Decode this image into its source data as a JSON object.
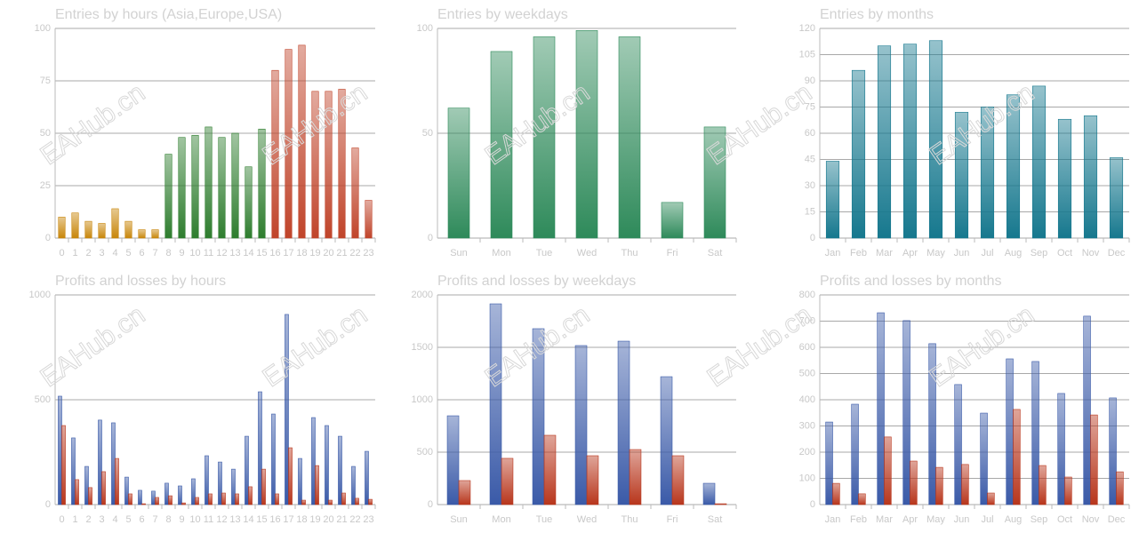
{
  "watermark": "EAHub.cn",
  "chart_data": [
    {
      "type": "bar",
      "title": "Entries by hours (Asia,Europe,USA)",
      "categories": [
        "0",
        "1",
        "2",
        "3",
        "4",
        "5",
        "6",
        "7",
        "8",
        "9",
        "10",
        "11",
        "12",
        "13",
        "14",
        "15",
        "16",
        "17",
        "18",
        "19",
        "20",
        "21",
        "22",
        "23"
      ],
      "values": [
        10,
        12,
        8,
        7,
        14,
        8,
        4,
        4,
        40,
        48,
        49,
        53,
        48,
        50,
        34,
        52,
        80,
        90,
        92,
        70,
        70,
        71,
        43,
        18
      ],
      "colors": [
        "#c8860a",
        "#c8860a",
        "#c8860a",
        "#c8860a",
        "#c8860a",
        "#c8860a",
        "#c8860a",
        "#c8860a",
        "#2e7d2e",
        "#2e7d2e",
        "#2e7d2e",
        "#2e7d2e",
        "#2e7d2e",
        "#2e7d2e",
        "#2e7d2e",
        "#2e7d2e",
        "#c0442a",
        "#c0442a",
        "#c0442a",
        "#c0442a",
        "#c0442a",
        "#c0442a",
        "#c0442a",
        "#c0442a"
      ],
      "ylim": [
        0,
        100
      ],
      "yticks": [
        0,
        25,
        50,
        75,
        100
      ],
      "grid": true
    },
    {
      "type": "bar",
      "title": "Entries by weekdays",
      "categories": [
        "Sun",
        "Mon",
        "Tue",
        "Wed",
        "Thu",
        "Fri",
        "Sat"
      ],
      "values": [
        62,
        89,
        96,
        99,
        96,
        17,
        53
      ],
      "color": "#2e8a5a",
      "ylim": [
        0,
        100
      ],
      "yticks": [
        0,
        50,
        100
      ],
      "grid": true
    },
    {
      "type": "bar",
      "title": "Entries by months",
      "categories": [
        "Jan",
        "Feb",
        "Mar",
        "Apr",
        "May",
        "Jun",
        "Jul",
        "Aug",
        "Sep",
        "Oct",
        "Nov",
        "Dec"
      ],
      "values": [
        44,
        96,
        110,
        111,
        113,
        72,
        75,
        82,
        87,
        68,
        70,
        46
      ],
      "color": "#16788e",
      "ylim": [
        0,
        120
      ],
      "yticks": [
        0,
        15,
        30,
        45,
        60,
        75,
        90,
        105,
        120
      ],
      "grid": true
    },
    {
      "type": "grouped-bar",
      "title": "Profits and losses by hours",
      "categories": [
        "0",
        "1",
        "2",
        "3",
        "4",
        "5",
        "6",
        "7",
        "8",
        "9",
        "10",
        "11",
        "12",
        "13",
        "14",
        "15",
        "16",
        "17",
        "18",
        "19",
        "20",
        "21",
        "22",
        "23"
      ],
      "series": [
        {
          "color": "#3a5aa8",
          "values": [
            517,
            318,
            182,
            403,
            390,
            131,
            68,
            64,
            102,
            89,
            123,
            233,
            203,
            169,
            326,
            538,
            432,
            907,
            220,
            415,
            377,
            326,
            182,
            254
          ]
        },
        {
          "color": "#b8361c",
          "values": [
            377,
            119,
            81,
            157,
            220,
            51,
            4,
            34,
            42,
            8,
            34,
            51,
            55,
            51,
            85,
            169,
            51,
            271,
            21,
            186,
            21,
            55,
            30,
            25
          ]
        }
      ],
      "ylim": [
        0,
        1000
      ],
      "yticks": [
        0,
        500,
        1000
      ],
      "grid": true
    },
    {
      "type": "grouped-bar",
      "title": "Profits and losses by weekdays",
      "categories": [
        "Sun",
        "Mon",
        "Tue",
        "Wed",
        "Thu",
        "Fri",
        "Sat"
      ],
      "series": [
        {
          "color": "#3a5aa8",
          "values": [
            847,
            1915,
            1678,
            1517,
            1559,
            1220,
            203
          ]
        },
        {
          "color": "#b8361c",
          "values": [
            229,
            441,
            661,
            466,
            525,
            466,
            8
          ]
        }
      ],
      "ylim": [
        0,
        2000
      ],
      "yticks": [
        0,
        500,
        1000,
        1500,
        2000
      ],
      "grid": true
    },
    {
      "type": "grouped-bar",
      "title": "Profits and losses by months",
      "categories": [
        "Jan",
        "Feb",
        "Mar",
        "Apr",
        "May",
        "Jun",
        "Jul",
        "Aug",
        "Sep",
        "Oct",
        "Nov",
        "Dec"
      ],
      "series": [
        {
          "color": "#3a5aa8",
          "values": [
            315,
            383,
            732,
            702,
            614,
            458,
            349,
            556,
            546,
            424,
            719,
            407
          ]
        },
        {
          "color": "#b8361c",
          "values": [
            81,
            41,
            258,
            166,
            142,
            153,
            44,
            363,
            149,
            105,
            342,
            125
          ]
        }
      ],
      "ylim": [
        0,
        800
      ],
      "yticks": [
        0,
        100,
        200,
        300,
        400,
        500,
        600,
        700,
        800
      ],
      "grid": true
    }
  ]
}
